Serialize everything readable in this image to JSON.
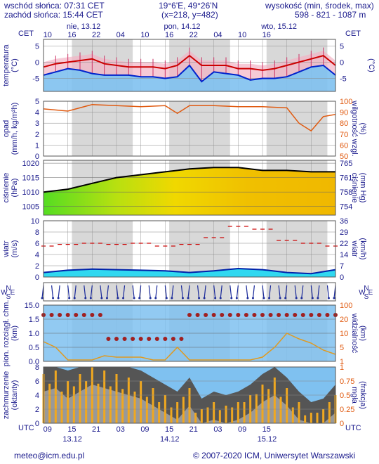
{
  "header": {
    "sunrise": "wschód słońca: 07:31 CET",
    "sunset": "zachód słońca: 15:44 CET",
    "coords": "19°6'E, 49°26'N",
    "grid": "(x=218, y=482)",
    "height_label": "wysokość (min, środek, max)",
    "heights": "598 - 821 - 1087 m"
  },
  "time_axis": {
    "top_tz": "CET",
    "top_hours": [
      "10",
      "16",
      "22",
      "04",
      "10",
      "16",
      "22",
      "04",
      "10",
      "16"
    ],
    "top_days": [
      "nie, 13.12",
      "pon, 14.12",
      "wto, 15.12"
    ],
    "bottom_tz": "UTC",
    "bottom_hours": [
      "09",
      "15",
      "21",
      "03",
      "09",
      "15",
      "21",
      "03",
      "09",
      "15"
    ],
    "bottom_days": [
      "13.12",
      "14.12",
      "15.12"
    ]
  },
  "panels": {
    "temperature": {
      "left_label": "temperatura",
      "left_unit": "(°C)",
      "right_unit": "(°C)",
      "ticks": [
        "5",
        "0",
        "-5"
      ]
    },
    "precip": {
      "left_label": "opad",
      "left_unit": "(mm/h, kg/m²h)",
      "ticks_left": [
        "5",
        "4",
        "3",
        "2",
        "1",
        "0"
      ],
      "right_label": "wilgotność wzgl.",
      "right_unit": "(%)",
      "ticks_right": [
        "100",
        "90",
        "80",
        "70",
        "60",
        "50"
      ]
    },
    "pressure": {
      "left_label": "ciśnienie",
      "left_unit": "(hPa)",
      "ticks_left": [
        "1020",
        "1015",
        "1010",
        "1005"
      ],
      "right_label": "ciśnienie",
      "right_unit": "(mm Hg)",
      "ticks_right": [
        "765",
        "761",
        "758",
        "754"
      ]
    },
    "wind": {
      "left_label": "wiatr",
      "left_unit": "(m/s)",
      "ticks_left": [
        "10",
        "8",
        "6",
        "4",
        "2",
        "0"
      ],
      "right_label": "wiatr",
      "right_unit": "(km/h)",
      "ticks_right": [
        "36",
        "29",
        "22",
        "14",
        "7",
        "0"
      ]
    },
    "direction": {
      "compass_left": [
        "N",
        "W",
        "E",
        "S"
      ],
      "compass_right": [
        "N",
        "W",
        "E",
        "S"
      ]
    },
    "visibility": {
      "left_label": "pion. rozciągł. chm.",
      "left_unit": "(km)",
      "ticks_left": [
        "15.0",
        "1.5",
        "1.0",
        "0.5",
        "0.0"
      ],
      "right_label": "widzialność",
      "right_unit": "(km)",
      "ticks_right": [
        "100",
        "20",
        "10",
        "5",
        "1"
      ]
    },
    "clouds": {
      "left_label": "zachmurzenie",
      "left_unit": "(oktanty)",
      "ticks_left": [
        "8",
        "6",
        "4",
        "2",
        "0"
      ],
      "right_label": "mgła",
      "right_unit": "(frakcja)",
      "ticks_right": [
        "1",
        "0.75",
        "0.5",
        "0.25",
        "0"
      ]
    }
  },
  "footer": {
    "email": "meteo@icm.edu.pl",
    "copyright": "© 2007-2020 ICM, Uniwersytet Warszawski"
  },
  "colors": {
    "text": "#1a1a8c",
    "night": "#d8d8d8",
    "sky": "#7fc1f0",
    "temp_red": "#cc0000",
    "temp_blue": "#0022cc",
    "humidity": "#e05a10",
    "wind_cyan": "#30d8f0",
    "cloud_bar": "#f0a820",
    "pressure_line": "#000000"
  },
  "chart_data": [
    {
      "type": "line",
      "name": "temperature",
      "x": [
        0,
        3,
        6,
        9,
        12,
        15,
        18,
        21,
        24,
        27,
        30,
        33,
        36,
        39,
        42,
        45,
        48,
        51,
        54,
        57,
        60,
        63,
        66,
        69,
        72
      ],
      "series": [
        {
          "name": "max",
          "values": [
            -1.5,
            -0.5,
            0,
            0.5,
            1,
            -0.5,
            -1,
            -1.5,
            -1.5,
            -1.5,
            -2,
            -1,
            2,
            -1,
            -1,
            -1,
            -2,
            -2,
            -2.5,
            -2,
            -1,
            0,
            1,
            2,
            -1
          ]
        },
        {
          "name": "min",
          "values": [
            -4,
            -3,
            -2,
            -2.5,
            -3.5,
            -4,
            -4,
            -4,
            -4.5,
            -4.5,
            -5,
            -4.5,
            -1,
            -6,
            -3,
            -3.5,
            -4,
            -5.5,
            -5,
            -5,
            -4.5,
            -3,
            -1.5,
            -1,
            -4
          ]
        }
      ],
      "ylim": [
        -9,
        7
      ]
    },
    {
      "type": "line",
      "name": "relative humidity",
      "x": [
        0,
        6,
        12,
        18,
        24,
        30,
        33,
        36,
        42,
        48,
        54,
        60,
        63,
        66,
        69,
        72
      ],
      "values": [
        93,
        91,
        97,
        96,
        95,
        96,
        89,
        96,
        96,
        95,
        95,
        94,
        80,
        73,
        86,
        88
      ],
      "ylim": [
        50,
        100
      ]
    },
    {
      "type": "line",
      "name": "pressure",
      "x": [
        0,
        6,
        12,
        18,
        24,
        30,
        36,
        42,
        48,
        54,
        60,
        66,
        72
      ],
      "values": [
        1010,
        1011,
        1013,
        1015,
        1016,
        1017,
        1018,
        1018.5,
        1018.5,
        1017.5,
        1017.5,
        1017,
        1017
      ],
      "ylim": [
        1002,
        1021
      ]
    },
    {
      "type": "line",
      "name": "wind",
      "x": [
        0,
        6,
        12,
        18,
        24,
        30,
        36,
        42,
        48,
        54,
        60,
        66,
        72
      ],
      "series": [
        {
          "name": "mean",
          "values": [
            0.8,
            1.2,
            1.4,
            1.3,
            1.2,
            1.1,
            0.8,
            1.1,
            1.5,
            1.3,
            0.8,
            0.6,
            1.3
          ]
        },
        {
          "name": "gust",
          "values": [
            5.5,
            5.8,
            6,
            5.8,
            6,
            5.5,
            5.8,
            7,
            9,
            8.5,
            6.5,
            6,
            5.5
          ]
        }
      ],
      "ylim": [
        0,
        10
      ]
    },
    {
      "type": "bar",
      "name": "cloud cover",
      "x": [
        0,
        3,
        6,
        9,
        12,
        15,
        18,
        21,
        24,
        27,
        30,
        33,
        36,
        39,
        42,
        45,
        48,
        51,
        54,
        57,
        60,
        63,
        66,
        69,
        72
      ],
      "values": [
        7,
        7.5,
        6,
        7,
        8,
        7.5,
        7,
        6.5,
        6,
        5,
        4,
        3,
        5,
        2,
        3,
        2.5,
        3,
        4,
        5.5,
        6.5,
        5,
        3,
        1.5,
        2,
        4
      ],
      "ylim": [
        0,
        8
      ]
    }
  ]
}
